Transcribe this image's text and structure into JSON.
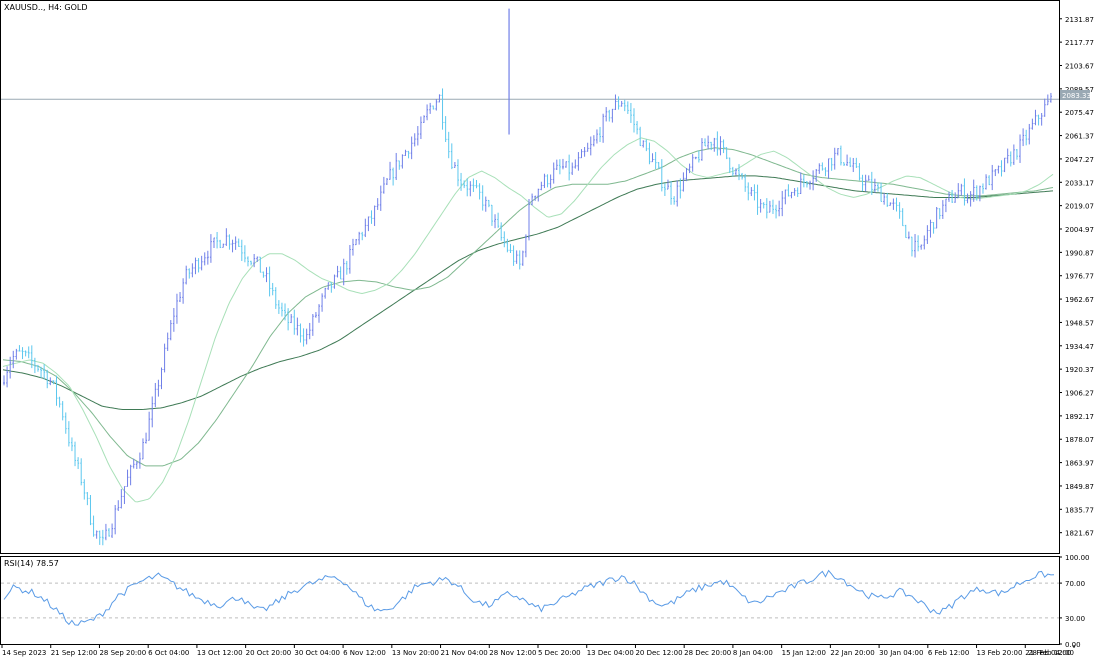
{
  "symbol_label": "XAUUSD.., H4:  GOLD",
  "rsi_label": "RSI(14) 78.57",
  "current_price": "2083.33",
  "colors": {
    "background": "#ffffff",
    "frame": "#000000",
    "bull_candle": "#6f7fe8",
    "bear_candle": "#5cc7ee",
    "ma_fast": "#a8e0b8",
    "ma_mid": "#7fb88f",
    "ma_slow": "#3f7a55",
    "rsi_line": "#5a9be6",
    "level_line": "#9aa9b4",
    "dash_line": "#bdbdbd"
  },
  "price_axis_labels": [
    "2131.87",
    "2117.77",
    "2103.67",
    "2089.57",
    "2075.47",
    "2061.37",
    "2047.27",
    "2033.17",
    "2019.07",
    "2004.97",
    "1990.87",
    "1976.77",
    "1962.67",
    "1948.57",
    "1934.47",
    "1920.37",
    "1906.27",
    "1892.17",
    "1878.07",
    "1863.97",
    "1849.87",
    "1835.77",
    "1821.67"
  ],
  "rsi_axis_labels": [
    "100.00",
    "70.00",
    "30.00",
    "0.00"
  ],
  "time_axis_labels": [
    "14 Sep 2023",
    "21 Sep 12:00",
    "28 Sep 20:00",
    "6 Oct 04:00",
    "13 Oct 12:00",
    "20 Oct 20:00",
    "30 Oct 04:00",
    "6 Nov 12:00",
    "13 Nov 20:00",
    "21 Nov 04:00",
    "28 Nov 12:00",
    "5 Dec 20:00",
    "13 Dec 04:00",
    "20 Dec 12:00",
    "28 Dec 20:00",
    "8 Jan 04:00",
    "15 Jan 12:00",
    "22 Jan 20:00",
    "30 Jan 04:00",
    "6 Feb 12:00",
    "13 Feb 20:00",
    "21 Feb 04:00",
    "28 Feb 12:00"
  ],
  "chart_data": {
    "type": "candlestick",
    "timeframe": "H4",
    "ylim": [
      1810,
      2142
    ],
    "rsi_levels": [
      70,
      30
    ],
    "rsi_ylim": [
      0,
      100
    ],
    "close_path": [
      1912,
      1927,
      1930,
      1925,
      1920,
      1912,
      1895,
      1870,
      1852,
      1825,
      1815,
      1830,
      1848,
      1862,
      1875,
      1900,
      1928,
      1955,
      1975,
      1983,
      1990,
      1996,
      2000,
      1998,
      1990,
      1985,
      1975,
      1960,
      1950,
      1945,
      1940,
      1955,
      1968,
      1975,
      1985,
      2000,
      2008,
      2020,
      2035,
      2045,
      2055,
      2062,
      2078,
      2085,
      2050,
      2035,
      2030,
      2025,
      2015,
      2000,
      1990,
      1982,
      2025,
      2032,
      2038,
      2042,
      2040,
      2048,
      2055,
      2068,
      2078,
      2083,
      2070,
      2055,
      2045,
      2032,
      2025,
      2035,
      2045,
      2055,
      2060,
      2050,
      2040,
      2030,
      2022,
      2015,
      2020,
      2025,
      2030,
      2035,
      2040,
      2045,
      2050,
      2045,
      2038,
      2032,
      2028,
      2022,
      2015,
      2000,
      1990,
      2005,
      2015,
      2022,
      2028,
      2025,
      2030,
      2035,
      2040,
      2048,
      2055,
      2065,
      2075,
      2083
    ],
    "ma_fast_path": [
      1922,
      1924,
      1926,
      1924,
      1918,
      1910,
      1896,
      1880,
      1862,
      1848,
      1840,
      1842,
      1852,
      1868,
      1890,
      1915,
      1940,
      1960,
      1975,
      1985,
      1990,
      1990,
      1986,
      1980,
      1975,
      1972,
      1968,
      1966,
      1968,
      1972,
      1980,
      1990,
      2002,
      2014,
      2026,
      2036,
      2040,
      2036,
      2030,
      2025,
      2018,
      2012,
      2014,
      2022,
      2032,
      2042,
      2050,
      2056,
      2060,
      2058,
      2052,
      2044,
      2038,
      2036,
      2038,
      2040,
      2045,
      2050,
      2052,
      2048,
      2042,
      2036,
      2030,
      2026,
      2024,
      2026,
      2030,
      2034,
      2037,
      2036,
      2032,
      2028,
      2024,
      2023,
      2024,
      2025,
      2026,
      2028,
      2032,
      2038
    ],
    "ma_mid_path": [
      1926,
      1925,
      1922,
      1916,
      1906,
      1894,
      1880,
      1868,
      1862,
      1862,
      1866,
      1876,
      1890,
      1906,
      1922,
      1940,
      1954,
      1964,
      1970,
      1973,
      1974,
      1973,
      1970,
      1968,
      1970,
      1976,
      1986,
      1996,
      2006,
      2016,
      2024,
      2030,
      2032,
      2032,
      2032,
      2034,
      2038,
      2042,
      2048,
      2052,
      2054,
      2053,
      2050,
      2046,
      2042,
      2038,
      2036,
      2035,
      2034,
      2033,
      2032,
      2030,
      2028,
      2026,
      2025,
      2025,
      2026,
      2027,
      2028,
      2030
    ],
    "ma_slow_path": [
      1920,
      1918,
      1915,
      1910,
      1904,
      1898,
      1896,
      1896,
      1897,
      1900,
      1904,
      1910,
      1916,
      1921,
      1925,
      1928,
      1932,
      1938,
      1946,
      1954,
      1962,
      1970,
      1978,
      1986,
      1992,
      1996,
      1999,
      2002,
      2006,
      2012,
      2018,
      2024,
      2029,
      2032,
      2034,
      2035,
      2036,
      2037,
      2037,
      2036,
      2034,
      2032,
      2030,
      2028,
      2027,
      2026,
      2025,
      2024,
      2024,
      2024,
      2025,
      2026,
      2027,
      2028
    ],
    "rsi_path": [
      55,
      65,
      62,
      58,
      50,
      40,
      28,
      22,
      25,
      30,
      40,
      55,
      62,
      70,
      75,
      78,
      72,
      65,
      58,
      52,
      48,
      45,
      50,
      55,
      42,
      38,
      44,
      52,
      60,
      66,
      70,
      74,
      78,
      72,
      60,
      48,
      40,
      38,
      45,
      55,
      66,
      70,
      72,
      75,
      68,
      56,
      48,
      44,
      50,
      58,
      54,
      46,
      40,
      44,
      50,
      55,
      62,
      66,
      70,
      74,
      78,
      72,
      60,
      50,
      44,
      48,
      56,
      62,
      66,
      70,
      72,
      62,
      52,
      46,
      52,
      58,
      62,
      68,
      72,
      78,
      82,
      78,
      70,
      62,
      56,
      52,
      56,
      60,
      56,
      48,
      40,
      36,
      44,
      54,
      60,
      64,
      60,
      58,
      66,
      72,
      78,
      80,
      78.57
    ]
  }
}
